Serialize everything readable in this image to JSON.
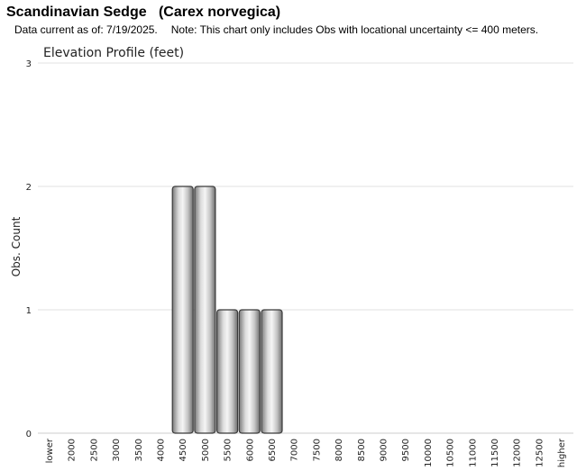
{
  "header": {
    "title": "Scandinavian Sedge   (Carex norvegica)",
    "data_current": "Data current as of: 7/19/2025.",
    "note": "Note: This chart only includes Obs with locational uncertainty <= 400 meters."
  },
  "chart_data": {
    "type": "bar",
    "title": "Elevation Profile (feet)",
    "xlabel": "",
    "ylabel": "Obs. Count",
    "ylim": [
      0,
      3
    ],
    "yticks": [
      0,
      1,
      2,
      3
    ],
    "grid": true,
    "categories": [
      "lower",
      "2000",
      "2500",
      "3000",
      "3500",
      "4000",
      "4500",
      "5000",
      "5500",
      "6000",
      "6500",
      "7000",
      "7500",
      "8000",
      "8500",
      "9000",
      "9500",
      "10000",
      "10500",
      "11000",
      "11500",
      "12000",
      "12500",
      "higher"
    ],
    "values": [
      0,
      0,
      0,
      0,
      0,
      0,
      2,
      2,
      1,
      1,
      1,
      0,
      0,
      0,
      0,
      0,
      0,
      0,
      0,
      0,
      0,
      0,
      0,
      0
    ]
  },
  "colors": {
    "bar_stroke": "#3a3a3a",
    "grid": "#e2e2e2"
  }
}
